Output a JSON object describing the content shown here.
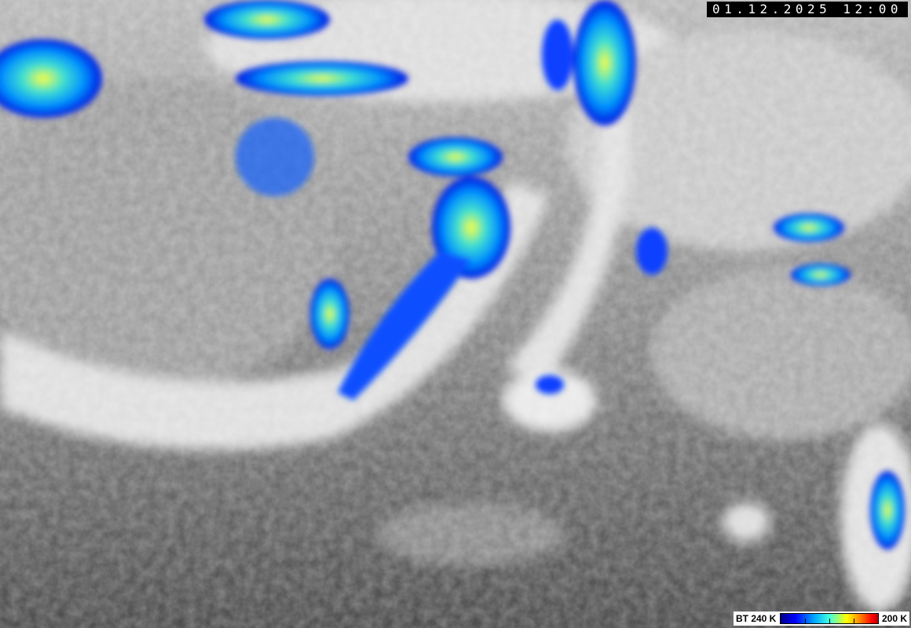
{
  "timestamp": "01.12.2025 12:00",
  "legend": {
    "low_label": "BT 240 K",
    "high_label": "200 K",
    "colormap": [
      "#00008a",
      "#0000ff",
      "#00aaff",
      "#40ffe0",
      "#ffff00",
      "#ff8000",
      "#ff0000",
      "#b00000"
    ]
  },
  "imagery": {
    "type": "infrared satellite",
    "background_colors": {
      "cold_cloud": "#f0f0f0",
      "mid_cloud": "#a8a8a8",
      "surface": "#4a4a4a"
    }
  }
}
